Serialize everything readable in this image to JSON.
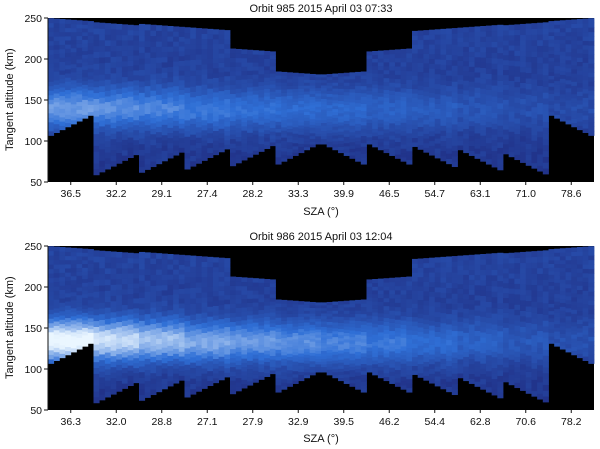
{
  "chart_data": [
    {
      "type": "heatmap",
      "title": "Orbit 985 2015 April 03 07:33",
      "xlabel": "SZA (°)",
      "ylabel": "Tangent altitude (km)",
      "ylim": [
        50,
        250
      ],
      "y_ticks": [
        "50",
        "100",
        "150",
        "200",
        "250"
      ],
      "x_tick_labels": [
        "36.5",
        "32.2",
        "29.1",
        "27.4",
        "28.2",
        "33.3",
        "39.9",
        "46.5",
        "54.7",
        "63.1",
        "71.0",
        "78.6"
      ],
      "scans": [
        {
          "sza": 36.5,
          "alt_min": 105,
          "alt_max": 250,
          "peak_alt": 140,
          "peak_intensity": 0.55
        },
        {
          "sza": 32.2,
          "alt_min": 57,
          "alt_max": 245,
          "peak_alt": 140,
          "peak_intensity": 0.5
        },
        {
          "sza": 29.1,
          "alt_min": 60,
          "alt_max": 243,
          "peak_alt": 140,
          "peak_intensity": 0.45
        },
        {
          "sza": 27.4,
          "alt_min": 64,
          "alt_max": 239,
          "peak_alt": 138,
          "peak_intensity": 0.4
        },
        {
          "sza": 28.2,
          "alt_min": 68,
          "alt_max": 213,
          "peak_alt": 138,
          "peak_intensity": 0.35
        },
        {
          "sza": 33.3,
          "alt_min": 70,
          "alt_max": 185,
          "peak_alt": 138,
          "peak_intensity": 0.32
        },
        {
          "sza": 39.9,
          "alt_min": 70,
          "alt_max": 185,
          "peak_alt": 138,
          "peak_intensity": 0.3
        },
        {
          "sza": 46.5,
          "alt_min": 70,
          "alt_max": 213,
          "peak_alt": 138,
          "peak_intensity": 0.26
        },
        {
          "sza": 54.7,
          "alt_min": 67,
          "alt_max": 238,
          "peak_alt": 138,
          "peak_intensity": 0.22
        },
        {
          "sza": 63.1,
          "alt_min": 63,
          "alt_max": 242,
          "peak_alt": 138,
          "peak_intensity": 0.17
        },
        {
          "sza": 71.0,
          "alt_min": 58,
          "alt_max": 245,
          "peak_alt": 138,
          "peak_intensity": 0.13
        },
        {
          "sza": 78.6,
          "alt_min": 105,
          "alt_max": 250,
          "peak_alt": 138,
          "peak_intensity": 0.1
        }
      ],
      "colors": {
        "background": "#000000",
        "low": "#1c1d6e",
        "mid": "#2f6fd6",
        "high": "#eaf6ff"
      }
    },
    {
      "type": "heatmap",
      "title": "Orbit 986 2015 April 03 12:04",
      "xlabel": "SZA (°)",
      "ylabel": "Tangent altitude (km)",
      "ylim": [
        50,
        250
      ],
      "y_ticks": [
        "50",
        "100",
        "150",
        "200",
        "250"
      ],
      "x_tick_labels": [
        "36.3",
        "32.0",
        "28.8",
        "27.1",
        "27.9",
        "32.9",
        "39.5",
        "46.2",
        "54.4",
        "62.8",
        "70.6",
        "78.2"
      ],
      "scans": [
        {
          "sza": 36.3,
          "alt_min": 105,
          "alt_max": 250,
          "peak_alt": 135,
          "peak_intensity": 1.0
        },
        {
          "sza": 32.0,
          "alt_min": 57,
          "alt_max": 245,
          "peak_alt": 135,
          "peak_intensity": 0.85
        },
        {
          "sza": 28.8,
          "alt_min": 60,
          "alt_max": 243,
          "peak_alt": 135,
          "peak_intensity": 0.72
        },
        {
          "sza": 27.1,
          "alt_min": 64,
          "alt_max": 239,
          "peak_alt": 133,
          "peak_intensity": 0.62
        },
        {
          "sza": 27.9,
          "alt_min": 68,
          "alt_max": 213,
          "peak_alt": 133,
          "peak_intensity": 0.55
        },
        {
          "sza": 32.9,
          "alt_min": 70,
          "alt_max": 185,
          "peak_alt": 132,
          "peak_intensity": 0.5
        },
        {
          "sza": 39.5,
          "alt_min": 70,
          "alt_max": 185,
          "peak_alt": 132,
          "peak_intensity": 0.45
        },
        {
          "sza": 46.2,
          "alt_min": 70,
          "alt_max": 213,
          "peak_alt": 132,
          "peak_intensity": 0.4
        },
        {
          "sza": 54.4,
          "alt_min": 67,
          "alt_max": 238,
          "peak_alt": 132,
          "peak_intensity": 0.33
        },
        {
          "sza": 62.8,
          "alt_min": 63,
          "alt_max": 242,
          "peak_alt": 133,
          "peak_intensity": 0.26
        },
        {
          "sza": 70.6,
          "alt_min": 58,
          "alt_max": 245,
          "peak_alt": 133,
          "peak_intensity": 0.19
        },
        {
          "sza": 78.2,
          "alt_min": 105,
          "alt_max": 250,
          "peak_alt": 133,
          "peak_intensity": 0.14
        }
      ],
      "colors": {
        "background": "#000000",
        "low": "#1c1d6e",
        "mid": "#2f6fd6",
        "high": "#eaf6ff"
      }
    }
  ]
}
